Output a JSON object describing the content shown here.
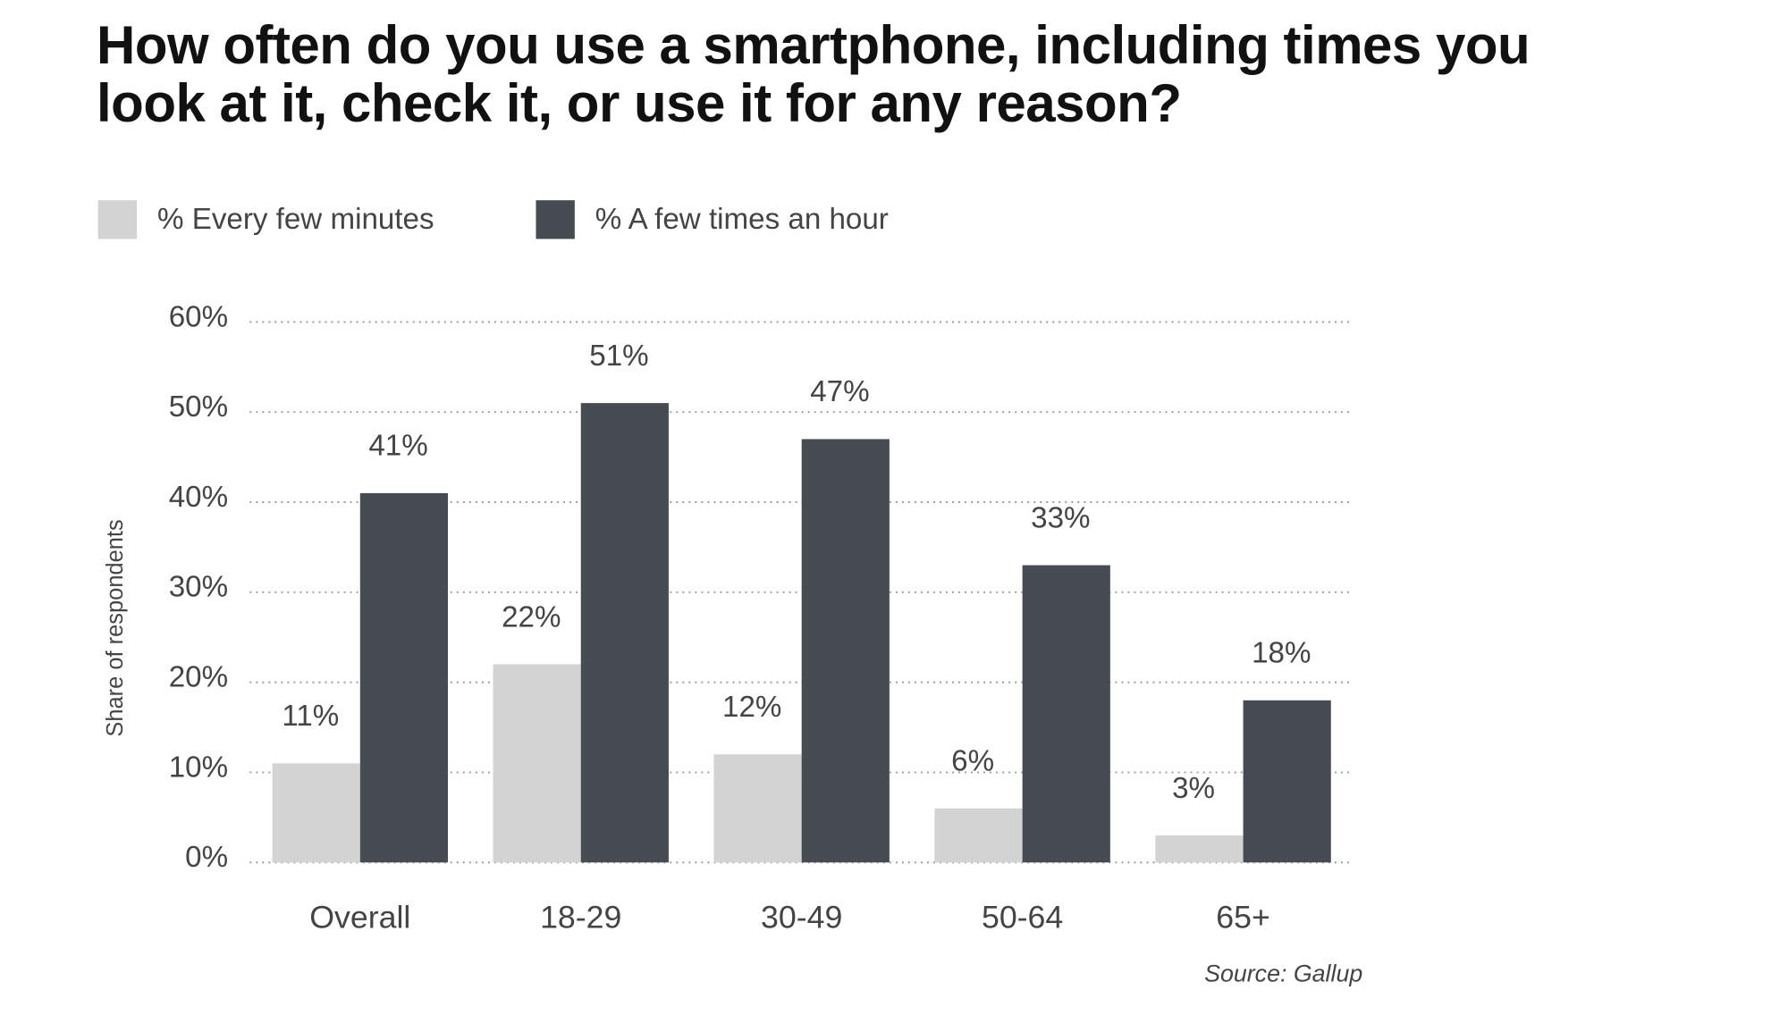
{
  "chart_data": {
    "type": "bar",
    "title": "How often do you use a smartphone, including times you look at it, check it, or use it for any reason?",
    "y_label": "Share of respondents",
    "source": "Source: Gallup",
    "categories": [
      "Overall",
      "18-29",
      "30-49",
      "50-64",
      "65+"
    ],
    "series": [
      {
        "name": "% Every few minutes",
        "color": "#d3d3d3",
        "values": [
          11,
          22,
          12,
          6,
          3
        ],
        "value_labels": [
          "11%",
          "22%",
          "12%",
          "6%",
          "3%"
        ]
      },
      {
        "name": "% A few times an hour",
        "color": "#474c52",
        "values": [
          41,
          51,
          47,
          33,
          18
        ],
        "value_labels": [
          "41%",
          "51%",
          "47%",
          "33%",
          "18%"
        ]
      }
    ],
    "ylim": [
      0,
      60
    ],
    "yticks": [
      {
        "value": 0,
        "label": "0%"
      },
      {
        "value": 10,
        "label": "10%"
      },
      {
        "value": 20,
        "label": "20%"
      },
      {
        "value": 30,
        "label": "30%"
      },
      {
        "value": 40,
        "label": "40%"
      },
      {
        "value": 50,
        "label": "50%"
      },
      {
        "value": 60,
        "label": "60%"
      }
    ],
    "grid": true
  }
}
